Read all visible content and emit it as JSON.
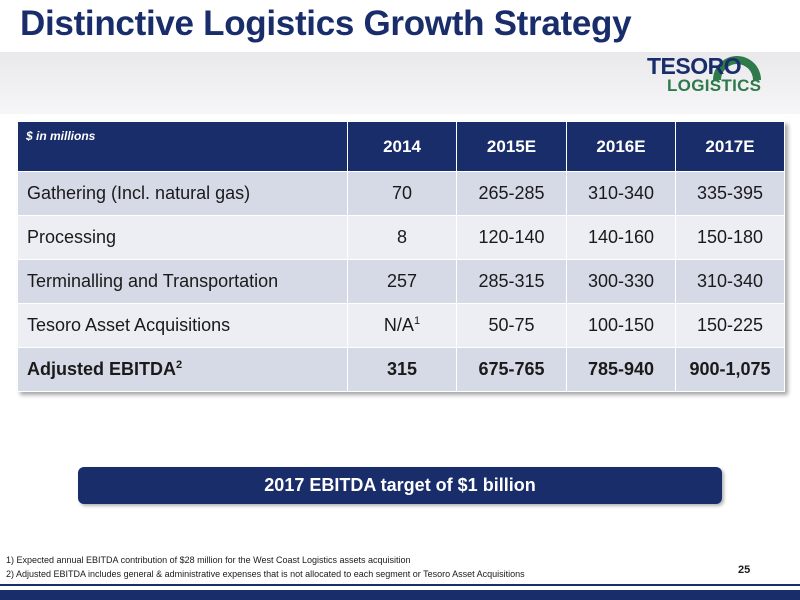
{
  "slide": {
    "title": "Distinctive Logistics Growth Strategy",
    "page_number": "25"
  },
  "logo": {
    "line1": "TESORO",
    "line2": "LOGISTICS",
    "arc_colors": [
      "#2e7a4a",
      "#1a2d6b"
    ]
  },
  "table": {
    "unit_label": "$ in millions",
    "columns": [
      "2014",
      "2015E",
      "2016E",
      "2017E"
    ],
    "rows": [
      {
        "label": "Gathering (Incl. natural gas)",
        "sup": "",
        "values": [
          "70",
          "265-285",
          "310-340",
          "335-395"
        ],
        "value_sup": ""
      },
      {
        "label": "Processing",
        "sup": "",
        "values": [
          "8",
          "120-140",
          "140-160",
          "150-180"
        ],
        "value_sup": ""
      },
      {
        "label": "Terminalling and Transportation",
        "sup": "",
        "values": [
          "257",
          "285-315",
          "300-330",
          "310-340"
        ],
        "value_sup": ""
      },
      {
        "label": "Tesoro Asset Acquisitions",
        "sup": "",
        "values": [
          "N/A",
          "50-75",
          "100-150",
          "150-225"
        ],
        "value_sup": "1"
      },
      {
        "label": "Adjusted EBITDA",
        "sup": "2",
        "values": [
          "315",
          "675-765",
          "785-940",
          "900-1,075"
        ],
        "value_sup": ""
      }
    ]
  },
  "callout": "2017 EBITDA target of $1 billion",
  "footnotes": [
    "1) Expected annual EBITDA contribution of $28 million for the West Coast Logistics assets acquisition",
    "2) Adjusted EBITDA includes general & administrative expenses that is not allocated to each segment or Tesoro Asset Acquisitions"
  ],
  "colors": {
    "brand_navy": "#1a2d6b",
    "brand_green": "#2e7a4a",
    "row_dark": "#d6dae6",
    "row_light": "#eceef4"
  }
}
